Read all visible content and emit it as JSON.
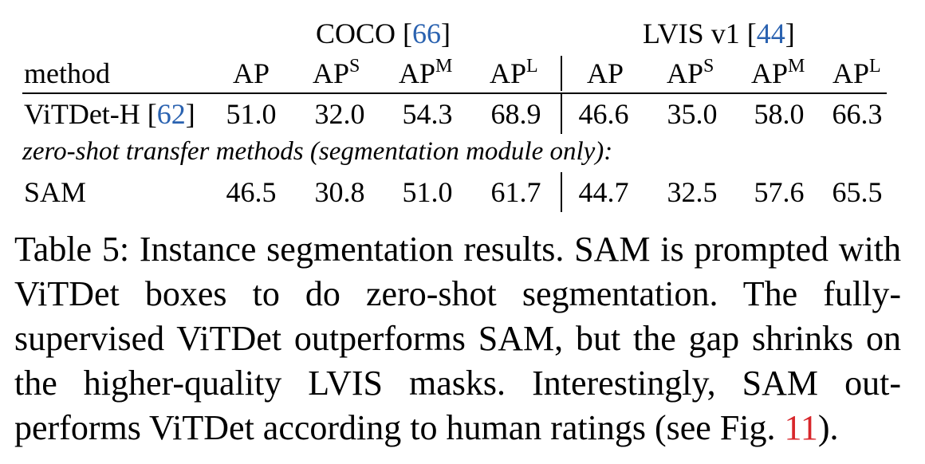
{
  "table": {
    "groups": {
      "coco": {
        "name": "COCO",
        "ref": "66"
      },
      "lvis": {
        "name": "LVIS v1",
        "ref": "44"
      }
    },
    "header": {
      "method": "method",
      "ap": "AP",
      "aps_base": "AP",
      "aps_sup": "S",
      "apm_base": "AP",
      "apm_sup": "M",
      "apl_base": "AP",
      "apl_sup": "L"
    },
    "rows": [
      {
        "method": "ViTDet-H",
        "ref": "62",
        "coco": [
          "51.0",
          "32.0",
          "54.3",
          "68.9"
        ],
        "lvis": [
          "46.6",
          "35.0",
          "58.0",
          "66.3"
        ]
      },
      {
        "method": "SAM",
        "coco": [
          "46.5",
          "30.8",
          "51.0",
          "61.7"
        ],
        "lvis": [
          "44.7",
          "32.5",
          "57.6",
          "65.5"
        ]
      }
    ],
    "section_label": "zero-shot transfer methods (segmentation module only):"
  },
  "caption": {
    "label": "Table 5:",
    "text_before_ref": "Instance segmentation results.  SAM is prompted with ViTDet boxes to do zero-shot segmentation. The fully-supervised ViTDet outperforms SAM, but the gap shrinks on the higher-quality LVIS masks. Interestingly, SAM out-performs ViTDet according to human ratings (see Fig.",
    "ref": "11",
    "text_after_ref": ")."
  }
}
